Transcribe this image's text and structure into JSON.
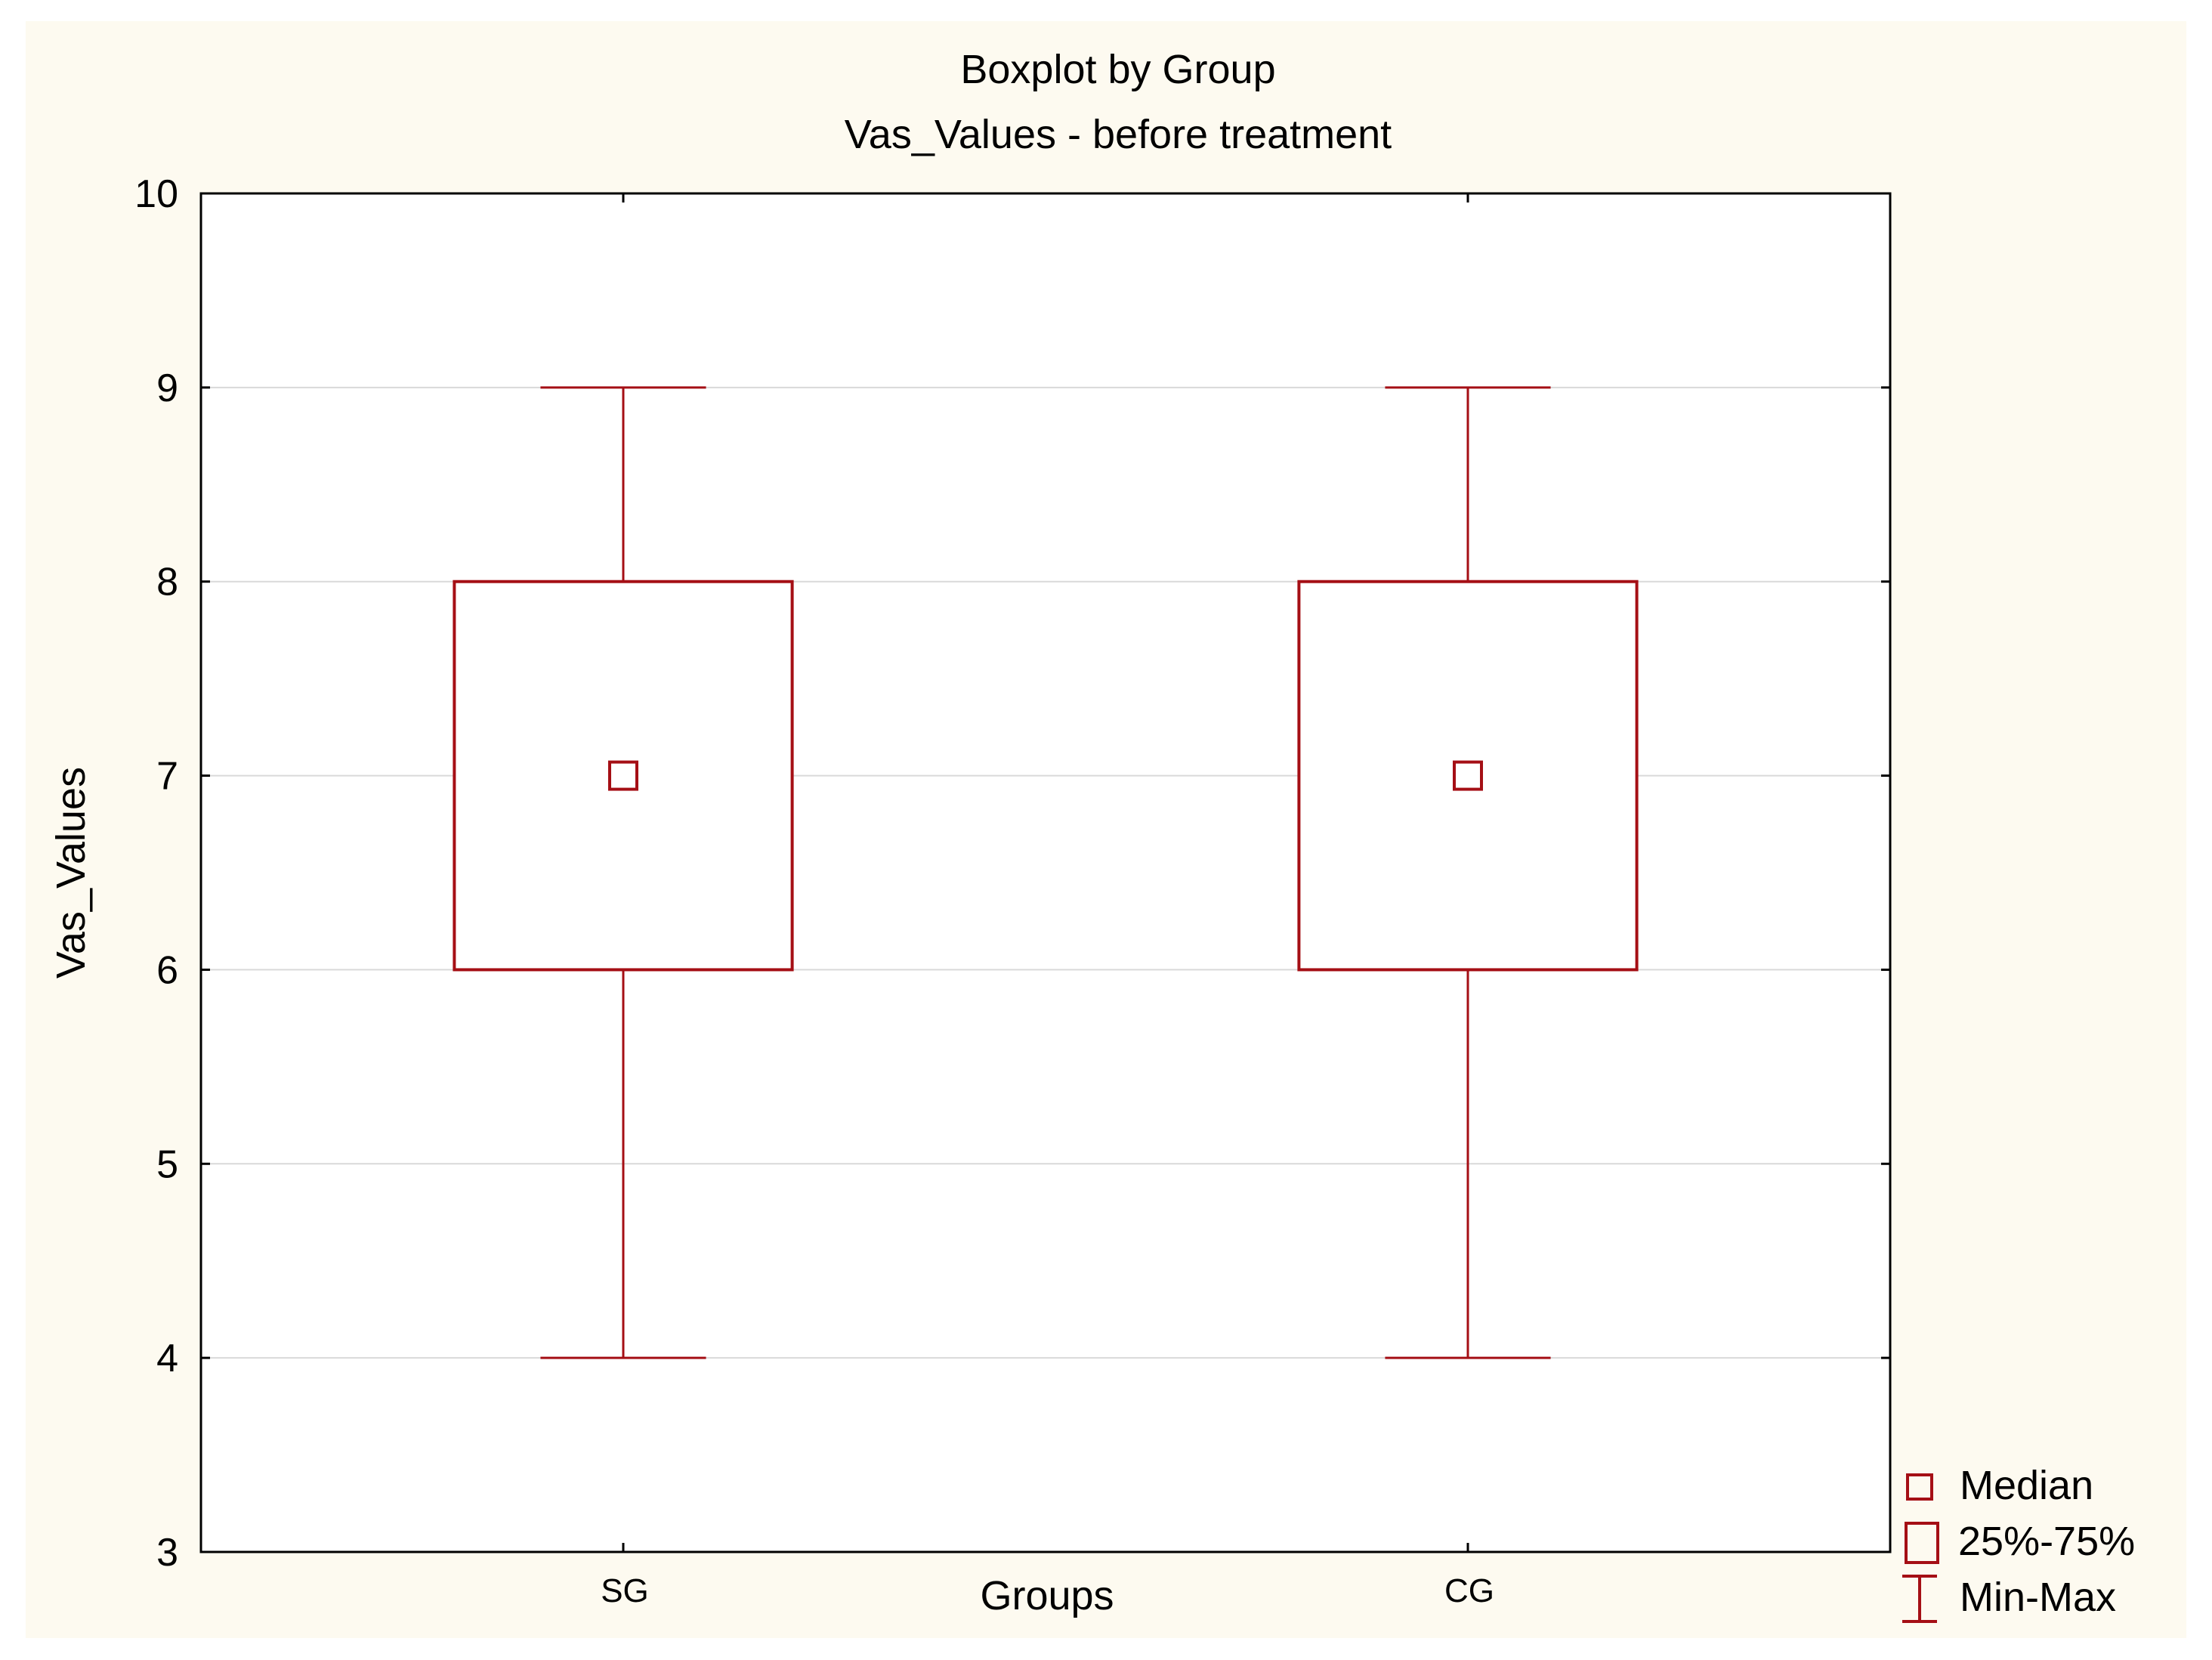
{
  "chart_data": {
    "type": "boxplot",
    "title": "Boxplot by Group",
    "subtitle": "Vas_Values - before treatment",
    "xlabel": "Groups",
    "ylabel": "Vas_Values",
    "ylim": [
      3,
      10
    ],
    "yticks": [
      "3",
      "4",
      "5",
      "6",
      "7",
      "8",
      "9",
      "10"
    ],
    "categories": [
      "SG",
      "CG"
    ],
    "boxes": [
      {
        "group": "SG",
        "min": 4,
        "q1": 6,
        "median": 7,
        "q3": 8,
        "max": 9
      },
      {
        "group": "CG",
        "min": 4,
        "q1": 6,
        "median": 7,
        "q3": 8,
        "max": 9
      }
    ],
    "legend": {
      "position": "bottom-right",
      "items": [
        "Median",
        "25%-75%",
        "Min-Max"
      ]
    },
    "grid": true,
    "colors": {
      "box": "#a50f15",
      "grid": "#d9d9d9",
      "background": "#fdfaf0"
    }
  }
}
